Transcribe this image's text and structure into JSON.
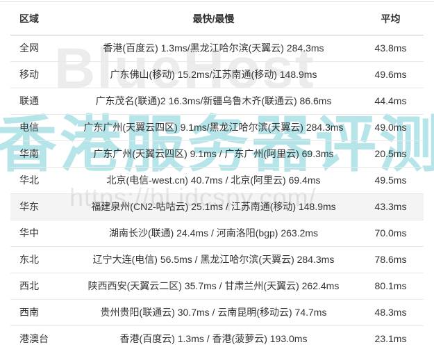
{
  "watermarks": {
    "brand": "BlueHost",
    "site_title": "香港服务器评测",
    "url": "https://bl.idcspy.com/",
    "brand_color": "#ececec",
    "site_title_color": "#b5e5e9",
    "url_color": "#e9e9e9"
  },
  "colors": {
    "text": "#333333",
    "header_divider": "#c9c9c9",
    "row_divider": "#e9e9e9",
    "background": "#ffffff"
  },
  "table": {
    "columns": [
      {
        "key": "region",
        "label": "区域"
      },
      {
        "key": "fastest_slowest",
        "label": "最快/最慢"
      },
      {
        "key": "average",
        "label": "平均"
      }
    ],
    "rows": [
      {
        "region": "全网",
        "fastest_slowest": "香港(百度云) 1.3ms/黑龙江哈尔滨(天翼云) 284.3ms",
        "average": "43.8ms",
        "highlighted": false
      },
      {
        "region": "移动",
        "fastest_slowest": "广东佛山(移动) 15.2ms/江苏南通(移动) 148.9ms",
        "average": "49.6ms",
        "highlighted": false
      },
      {
        "region": "联通",
        "fastest_slowest": "广东茂名(联通)2 16.3ms/新疆乌鲁木齐(联通云) 86.6ms",
        "average": "44.4ms",
        "highlighted": false
      },
      {
        "region": "电信",
        "fastest_slowest": "广东广州(天翼云四区) 9.1ms/黑龙江哈尔滨(天翼云) 284.3ms",
        "average": "49.0ms",
        "highlighted": false
      },
      {
        "region": "华南",
        "fastest_slowest": "广东广州(天翼云四区) 9.1ms / 广东广州(阿里云) 69.3ms",
        "average": "20.5ms",
        "highlighted": false
      },
      {
        "region": "华北",
        "fastest_slowest": "北京(电信-west.cn) 40.7ms / 北京(阿里云) 69.4ms",
        "average": "49.5ms",
        "highlighted": false
      },
      {
        "region": "华东",
        "fastest_slowest": "福建泉州(CN2-咕咕云) 25.1ms / 江苏南通(移动) 148.9ms",
        "average": "43.3ms",
        "highlighted": true
      },
      {
        "region": "华中",
        "fastest_slowest": "湖南长沙(联通) 24.4ms / 河南洛阳(bgp) 263.2ms",
        "average": "70.0ms",
        "highlighted": false
      },
      {
        "region": "东北",
        "fastest_slowest": "辽宁大连(电信) 56.5ms / 黑龙江哈尔滨(天翼云) 284.3ms",
        "average": "78.6ms",
        "highlighted": false
      },
      {
        "region": "西北",
        "fastest_slowest": "陕西西安(天翼云二区) 35.7ms / 甘肃兰州(天翼云) 262.4ms",
        "average": "80.1ms",
        "highlighted": false
      },
      {
        "region": "西南",
        "fastest_slowest": "贵州贵阳(联通云) 30.7ms / 云南昆明(移动云) 74.7ms",
        "average": "48.3ms",
        "highlighted": false
      },
      {
        "region": "港澳台",
        "fastest_slowest": "香港(百度云) 1.3ms / 香港(菠萝云) 193.0ms",
        "average": "23.1ms",
        "highlighted": false
      }
    ]
  }
}
